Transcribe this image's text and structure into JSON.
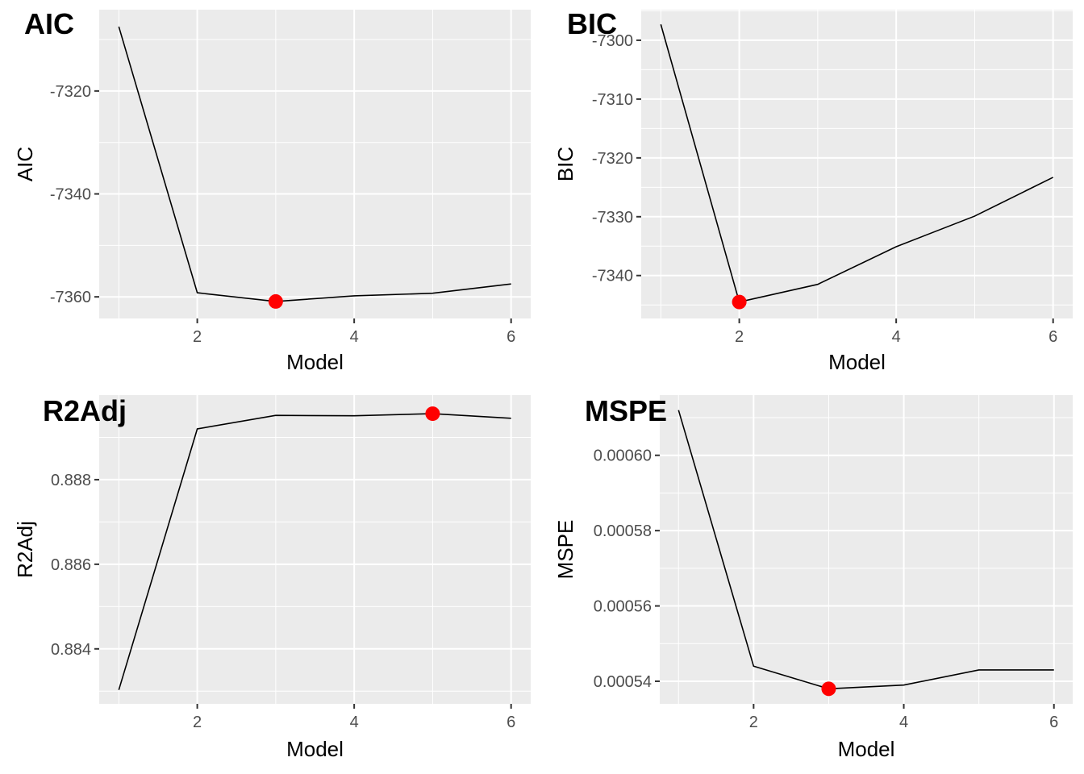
{
  "chart_data": [
    {
      "type": "line",
      "title": "AIC",
      "xlabel": "Model",
      "ylabel": "AIC",
      "x": [
        1,
        2,
        3,
        4,
        5,
        6
      ],
      "values": [
        -7307.5,
        -7359.2,
        -7360.9,
        -7359.8,
        -7359.3,
        -7357.5
      ],
      "highlight": {
        "x": 3,
        "y": -7360.9,
        "color": "#ff0000"
      },
      "xlim": [
        0.75,
        6.25
      ],
      "ylim": [
        -7364.2,
        -7304.2
      ],
      "xticks": [
        2,
        4,
        6
      ],
      "yticks": [
        -7360,
        -7340,
        -7320
      ],
      "yticklabels": [
        "-7360",
        "-7340",
        "-7320"
      ]
    },
    {
      "type": "line",
      "title": "BIC",
      "xlabel": "Model",
      "ylabel": "BIC",
      "x": [
        1,
        2,
        3,
        4,
        5,
        6
      ],
      "values": [
        -7297.3,
        -7344.5,
        -7341.5,
        -7335.1,
        -7329.9,
        -7323.3
      ],
      "highlight": {
        "x": 2,
        "y": -7344.5,
        "color": "#ff0000"
      },
      "xlim": [
        0.75,
        6.25
      ],
      "ylim": [
        -7347.3,
        -7294.8
      ],
      "xticks": [
        2,
        4,
        6
      ],
      "yticks": [
        -7340,
        -7330,
        -7320,
        -7310,
        -7300
      ],
      "yticklabels": [
        "-7340",
        "-7330",
        "-7320",
        "-7310",
        "-7300"
      ]
    },
    {
      "type": "line",
      "title": "R2Adj",
      "xlabel": "Model",
      "ylabel": "R2Adj",
      "x": [
        1,
        2,
        3,
        4,
        5,
        6
      ],
      "values": [
        0.88303,
        0.8892,
        0.88952,
        0.88951,
        0.88956,
        0.88945
      ],
      "highlight": {
        "x": 5,
        "y": 0.88956,
        "color": "#ff0000"
      },
      "xlim": [
        0.75,
        6.25
      ],
      "ylim": [
        0.8827,
        0.89
      ],
      "xticks": [
        2,
        4,
        6
      ],
      "yticks": [
        0.884,
        0.886,
        0.888
      ],
      "yticklabels": [
        "0.884",
        "0.886",
        "0.888"
      ]
    },
    {
      "type": "line",
      "title": "MSPE",
      "xlabel": "Model",
      "ylabel": "MSPE",
      "x": [
        1,
        2,
        3,
        4,
        5,
        6
      ],
      "values": [
        0.000612,
        0.000544,
        0.000538,
        0.000539,
        0.000543,
        0.000543
      ],
      "highlight": {
        "x": 3,
        "y": 0.000538,
        "color": "#ff0000"
      },
      "xlim": [
        0.75,
        6.25
      ],
      "ylim": [
        0.000534,
        0.000616
      ],
      "xticks": [
        2,
        4,
        6
      ],
      "yticks": [
        0.00054,
        0.00056,
        0.00058,
        0.0006
      ],
      "yticklabels": [
        "0.00054",
        "0.00056",
        "0.00058",
        "0.00060"
      ]
    }
  ],
  "colors": {
    "panel_background": "#ebebeb",
    "grid_major": "#ffffff",
    "line": "#000000",
    "highlight": "#ff0000",
    "tick_text": "#4d4d4d"
  }
}
